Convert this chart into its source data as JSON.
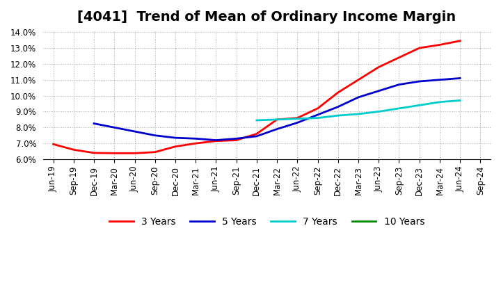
{
  "title": "[4041]  Trend of Mean of Ordinary Income Margin",
  "ylim": [
    0.06,
    0.141
  ],
  "yticks": [
    0.06,
    0.07,
    0.08,
    0.09,
    0.1,
    0.11,
    0.12,
    0.13,
    0.14
  ],
  "background_color": "#ffffff",
  "grid_color": "#aaaaaa",
  "xtick_labels": [
    "Jun-19",
    "Sep-19",
    "Dec-19",
    "Mar-20",
    "Jun-20",
    "Sep-20",
    "Dec-20",
    "Mar-21",
    "Jun-21",
    "Sep-21",
    "Dec-21",
    "Mar-22",
    "Jun-22",
    "Sep-22",
    "Dec-22",
    "Mar-23",
    "Jun-23",
    "Sep-23",
    "Dec-23",
    "Mar-24",
    "Jun-24",
    "Sep-24"
  ],
  "series": {
    "3 Years": {
      "color": "#ff0000",
      "x": [
        "Jun-19",
        "Sep-19",
        "Dec-19",
        "Mar-20",
        "Jun-20",
        "Sep-20",
        "Dec-20",
        "Mar-21",
        "Jun-21",
        "Sep-21",
        "Dec-21",
        "Mar-22",
        "Jun-22",
        "Sep-22",
        "Dec-22",
        "Mar-23",
        "Jun-23",
        "Sep-23",
        "Dec-23",
        "Mar-24",
        "Jun-24"
      ],
      "y": [
        0.0695,
        0.066,
        0.064,
        0.0638,
        0.0638,
        0.0645,
        0.068,
        0.07,
        0.0715,
        0.072,
        0.076,
        0.085,
        0.086,
        0.092,
        0.102,
        0.11,
        0.118,
        0.124,
        0.13,
        0.132,
        0.1345
      ]
    },
    "5 Years": {
      "color": "#0000cc",
      "x": [
        "Dec-19",
        "Mar-20",
        "Jun-20",
        "Sep-20",
        "Dec-20",
        "Mar-21",
        "Jun-21",
        "Sep-21",
        "Dec-21",
        "Mar-22",
        "Jun-22",
        "Sep-22",
        "Dec-22",
        "Mar-23",
        "Jun-23",
        "Sep-23",
        "Dec-23",
        "Mar-24",
        "Jun-24"
      ],
      "y": [
        0.0825,
        0.08,
        0.0775,
        0.075,
        0.0735,
        0.073,
        0.072,
        0.073,
        0.0745,
        0.079,
        0.083,
        0.088,
        0.093,
        0.099,
        0.103,
        0.107,
        0.109,
        0.11,
        0.111
      ]
    },
    "7 Years": {
      "color": "#00cccc",
      "x": [
        "Dec-21",
        "Mar-22",
        "Jun-22",
        "Sep-22",
        "Dec-22",
        "Mar-23",
        "Jun-23",
        "Sep-23",
        "Dec-23",
        "Mar-24",
        "Jun-24"
      ],
      "y": [
        0.0845,
        0.085,
        0.0855,
        0.086,
        0.0875,
        0.0885,
        0.09,
        0.092,
        0.094,
        0.096,
        0.097
      ]
    },
    "10 Years": {
      "color": "#008800",
      "x": [],
      "y": []
    }
  },
  "legend_order": [
    "3 Years",
    "5 Years",
    "7 Years",
    "10 Years"
  ],
  "title_fontsize": 14,
  "tick_fontsize": 8.5,
  "legend_fontsize": 10
}
